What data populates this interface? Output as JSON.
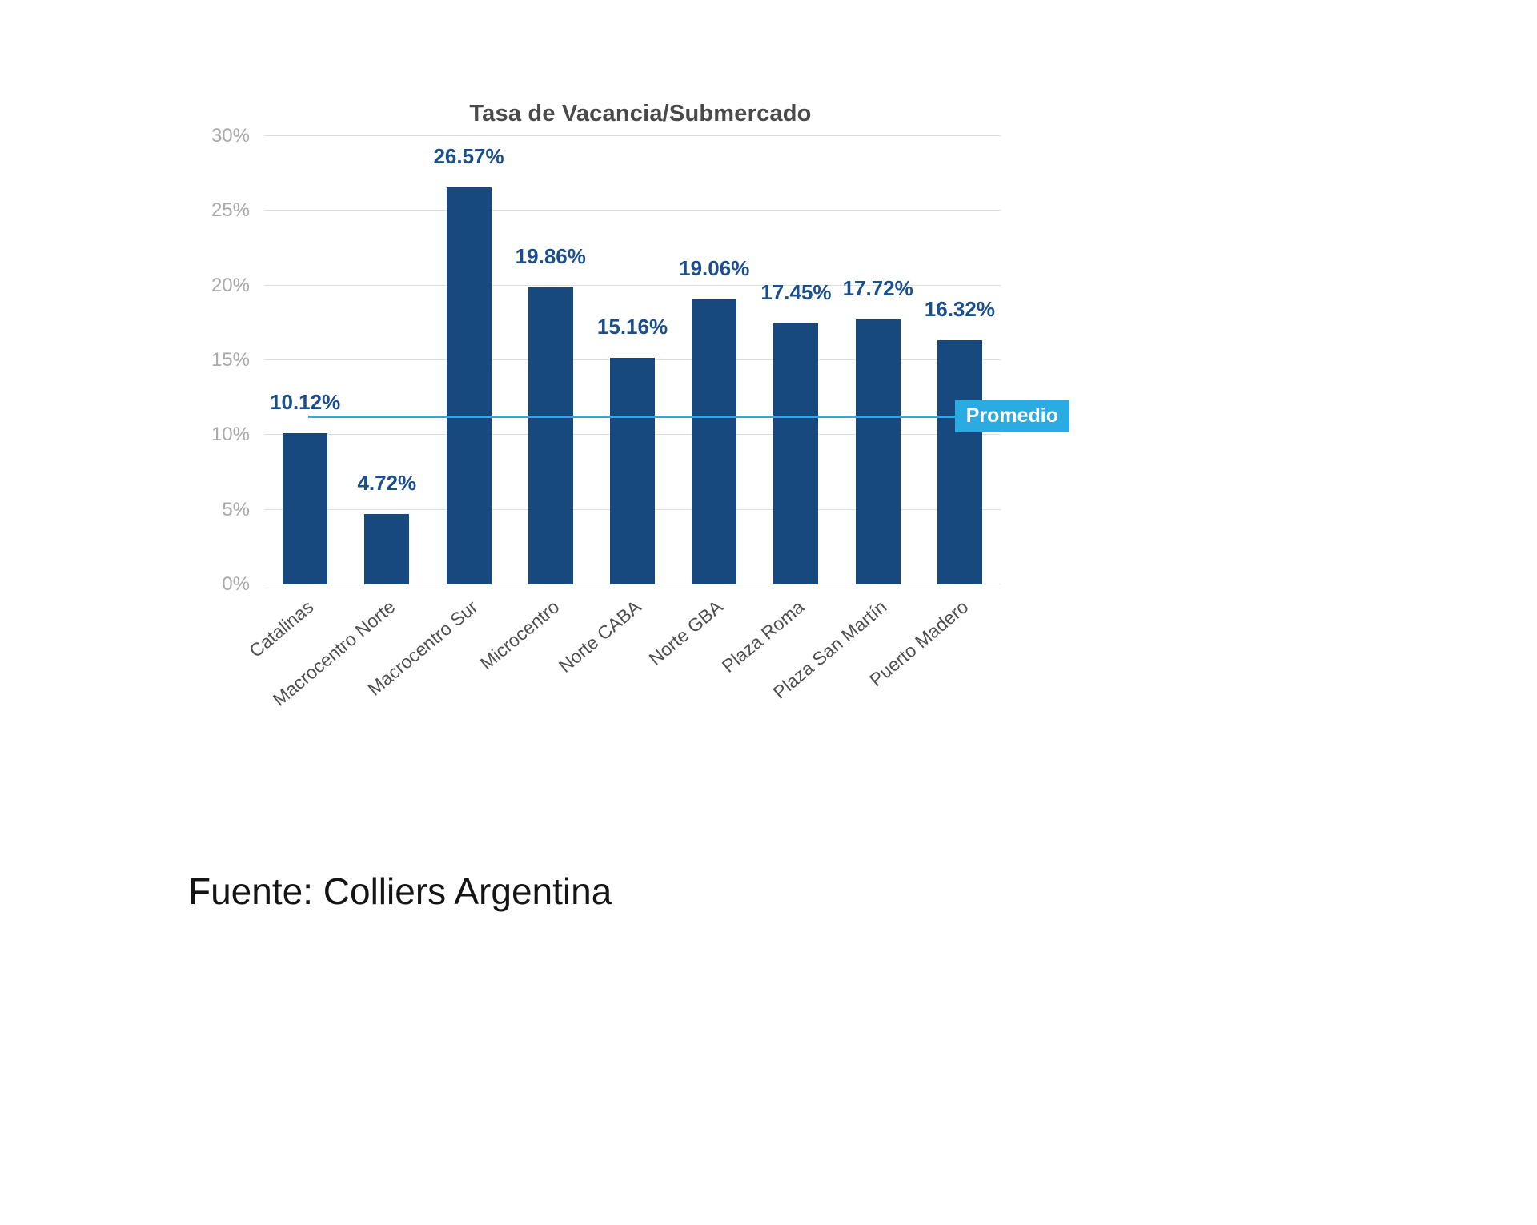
{
  "chart_data": {
    "type": "bar",
    "title": "Tasa de Vacancia/Submercado",
    "categories": [
      "Catalinas",
      "Macrocentro Norte",
      "Macrocentro Sur",
      "Microcentro",
      "Norte CABA",
      "Norte GBA",
      "Plaza Roma",
      "Plaza San Martín",
      "Puerto Madero"
    ],
    "values": [
      10.12,
      4.72,
      26.57,
      19.86,
      15.16,
      19.06,
      17.45,
      17.72,
      16.32
    ],
    "value_labels": [
      "10.12%",
      "4.72%",
      "26.57%",
      "19.86%",
      "15.16%",
      "19.06%",
      "17.45%",
      "17.72%",
      "16.32%"
    ],
    "xlabel": "",
    "ylabel": "",
    "ylim": [
      0,
      30
    ],
    "yticks": [
      0,
      5,
      10,
      15,
      20,
      25,
      30
    ],
    "ytick_labels": [
      "0%",
      "5%",
      "10%",
      "15%",
      "20%",
      "25%",
      "30%"
    ],
    "grid": true,
    "legend": "none",
    "average_line": {
      "label": "Promedio",
      "value": 11.2,
      "color": "#2aabe2"
    },
    "bar_color": "#17497f",
    "label_color": "#1b4f8c",
    "gridline_color": "#dedede",
    "axis_text_color": "#a9a9a9"
  },
  "source": "Fuente: Colliers Argentina"
}
